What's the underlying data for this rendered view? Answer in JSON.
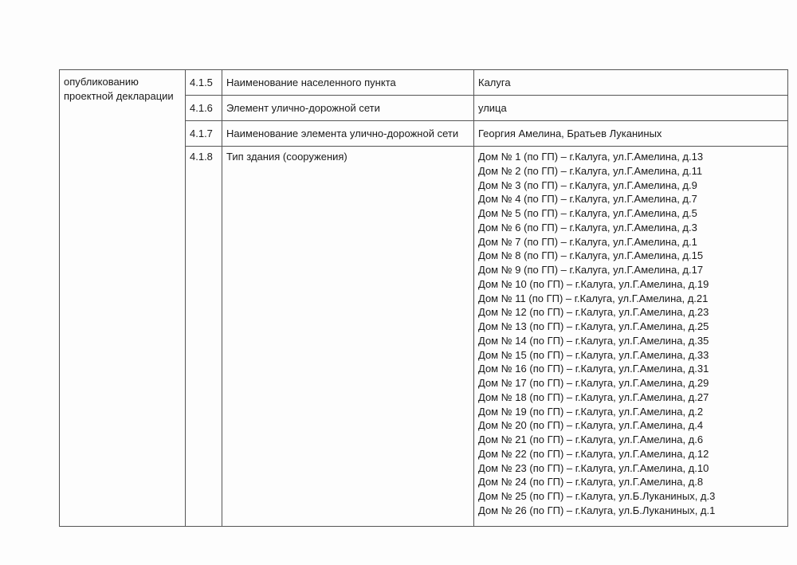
{
  "section_label": "опубликованию проектной декларации",
  "rows": [
    {
      "num": "4.1.5",
      "name": "Наименование населенного пункта",
      "value": "Калуга"
    },
    {
      "num": "4.1.6",
      "name": "Элемент улично-дорожной сети",
      "value": "улица"
    },
    {
      "num": "4.1.7",
      "name": "Наименование элемента улично-дорожной сети",
      "value": "Георгия Амелина, Братьев Луканиных"
    },
    {
      "num": "4.1.8",
      "name": "Тип здания (сооружения)",
      "value": ""
    }
  ],
  "buildings": [
    "Дом № 1 (по ГП) – г.Калуга, ул.Г.Амелина, д.13",
    "Дом № 2 (по ГП) – г.Калуга, ул.Г.Амелина, д.11",
    "Дом № 3 (по ГП) – г.Калуга, ул.Г.Амелина, д.9",
    "Дом № 4 (по ГП) – г.Калуга, ул.Г.Амелина, д.7",
    "Дом № 5 (по ГП) – г.Калуга, ул.Г.Амелина, д.5",
    "Дом № 6 (по ГП) – г.Калуга, ул.Г.Амелина, д.3",
    "Дом № 7 (по ГП) – г.Калуга, ул.Г.Амелина, д.1",
    "Дом № 8 (по ГП) – г.Калуга, ул.Г.Амелина, д.15",
    "Дом № 9 (по ГП) – г.Калуга, ул.Г.Амелина, д.17",
    "Дом № 10 (по ГП) – г.Калуга, ул.Г.Амелина, д.19",
    "Дом № 11 (по ГП) – г.Калуга, ул.Г.Амелина, д.21",
    "Дом № 12 (по ГП) – г.Калуга, ул.Г.Амелина, д.23",
    "Дом № 13 (по ГП) – г.Калуга, ул.Г.Амелина, д.25",
    "Дом № 14 (по ГП) – г.Калуга, ул.Г.Амелина, д.35",
    "Дом № 15 (по ГП) – г.Калуга, ул.Г.Амелина, д.33",
    "Дом № 16 (по ГП) – г.Калуга, ул.Г.Амелина, д.31",
    "Дом № 17 (по ГП) – г.Калуга, ул.Г.Амелина, д.29",
    "Дом № 18 (по ГП) – г.Калуга, ул.Г.Амелина, д.27",
    "Дом № 19 (по ГП) – г.Калуга, ул.Г.Амелина, д.2",
    "Дом № 20 (по ГП) – г.Калуга, ул.Г.Амелина, д.4",
    "Дом № 21 (по ГП) – г.Калуга, ул.Г.Амелина, д.6",
    "Дом № 22 (по ГП) – г.Калуга, ул.Г.Амелина, д.12",
    "Дом № 23 (по ГП) – г.Калуга, ул.Г.Амелина, д.10",
    "Дом № 24 (по ГП) – г.Калуга, ул.Г.Амелина, д.8",
    "Дом № 25 (по ГП) – г.Калуга, ул.Б.Луканиных, д.3",
    "Дом № 26 (по ГП) – г.Калуга, ул.Б.Луканиных, д.1"
  ]
}
